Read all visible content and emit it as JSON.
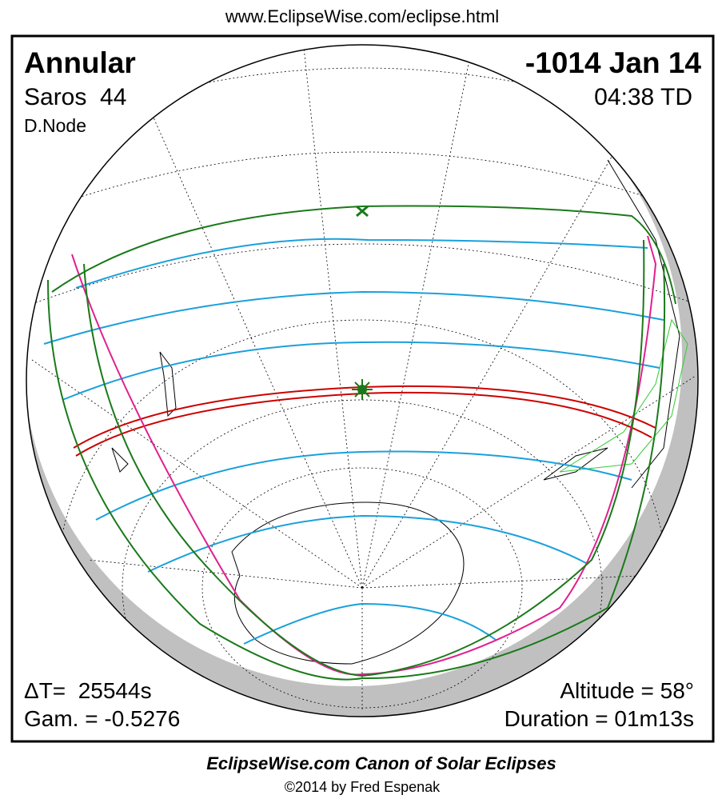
{
  "header": {
    "url": "www.EclipseWise.com/eclipse.html"
  },
  "eclipse": {
    "type": "Annular",
    "saros": "Saros  44",
    "node": "D.Node",
    "date": "-1014 Jan 14",
    "time": "04:38 TD"
  },
  "parameters": {
    "delta_t": "ΔT=  25544s",
    "gamma": "Gam. = -0.5276",
    "altitude": "Altitude = 58°",
    "duration": "Duration = 01m13s"
  },
  "footer": {
    "title": "EclipseWise.com Canon of Solar Eclipses",
    "copyright": "©2014 by Fred Espenak"
  }
}
